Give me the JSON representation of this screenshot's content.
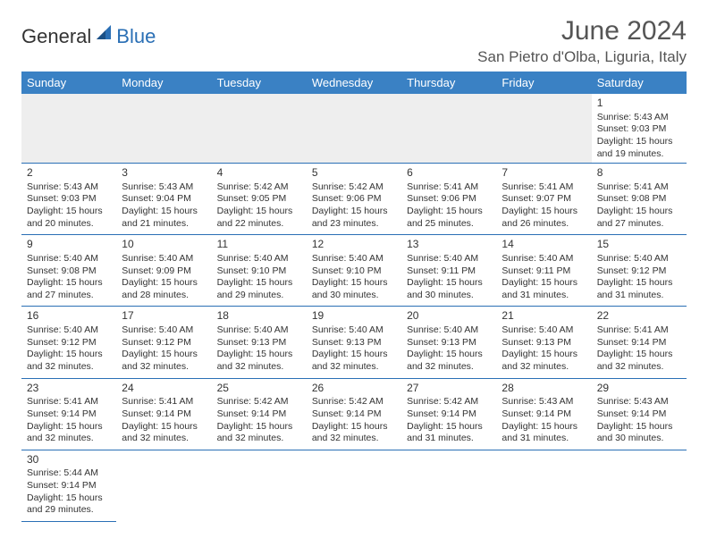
{
  "brand": {
    "part1": "General",
    "part2": "Blue"
  },
  "title": "June 2024",
  "location": "San Pietro d'Olba, Liguria, Italy",
  "colors": {
    "header_bg": "#3a81c4",
    "border": "#2a6fb5",
    "text": "#333333",
    "title_text": "#555555",
    "shade": "#eeeeee"
  },
  "daysOfWeek": [
    "Sunday",
    "Monday",
    "Tuesday",
    "Wednesday",
    "Thursday",
    "Friday",
    "Saturday"
  ],
  "weeks": [
    [
      null,
      null,
      null,
      null,
      null,
      null,
      {
        "n": "1",
        "sr": "Sunrise: 5:43 AM",
        "ss": "Sunset: 9:03 PM",
        "d1": "Daylight: 15 hours",
        "d2": "and 19 minutes."
      }
    ],
    [
      {
        "n": "2",
        "sr": "Sunrise: 5:43 AM",
        "ss": "Sunset: 9:03 PM",
        "d1": "Daylight: 15 hours",
        "d2": "and 20 minutes."
      },
      {
        "n": "3",
        "sr": "Sunrise: 5:43 AM",
        "ss": "Sunset: 9:04 PM",
        "d1": "Daylight: 15 hours",
        "d2": "and 21 minutes."
      },
      {
        "n": "4",
        "sr": "Sunrise: 5:42 AM",
        "ss": "Sunset: 9:05 PM",
        "d1": "Daylight: 15 hours",
        "d2": "and 22 minutes."
      },
      {
        "n": "5",
        "sr": "Sunrise: 5:42 AM",
        "ss": "Sunset: 9:06 PM",
        "d1": "Daylight: 15 hours",
        "d2": "and 23 minutes."
      },
      {
        "n": "6",
        "sr": "Sunrise: 5:41 AM",
        "ss": "Sunset: 9:06 PM",
        "d1": "Daylight: 15 hours",
        "d2": "and 25 minutes."
      },
      {
        "n": "7",
        "sr": "Sunrise: 5:41 AM",
        "ss": "Sunset: 9:07 PM",
        "d1": "Daylight: 15 hours",
        "d2": "and 26 minutes."
      },
      {
        "n": "8",
        "sr": "Sunrise: 5:41 AM",
        "ss": "Sunset: 9:08 PM",
        "d1": "Daylight: 15 hours",
        "d2": "and 27 minutes."
      }
    ],
    [
      {
        "n": "9",
        "sr": "Sunrise: 5:40 AM",
        "ss": "Sunset: 9:08 PM",
        "d1": "Daylight: 15 hours",
        "d2": "and 27 minutes."
      },
      {
        "n": "10",
        "sr": "Sunrise: 5:40 AM",
        "ss": "Sunset: 9:09 PM",
        "d1": "Daylight: 15 hours",
        "d2": "and 28 minutes."
      },
      {
        "n": "11",
        "sr": "Sunrise: 5:40 AM",
        "ss": "Sunset: 9:10 PM",
        "d1": "Daylight: 15 hours",
        "d2": "and 29 minutes."
      },
      {
        "n": "12",
        "sr": "Sunrise: 5:40 AM",
        "ss": "Sunset: 9:10 PM",
        "d1": "Daylight: 15 hours",
        "d2": "and 30 minutes."
      },
      {
        "n": "13",
        "sr": "Sunrise: 5:40 AM",
        "ss": "Sunset: 9:11 PM",
        "d1": "Daylight: 15 hours",
        "d2": "and 30 minutes."
      },
      {
        "n": "14",
        "sr": "Sunrise: 5:40 AM",
        "ss": "Sunset: 9:11 PM",
        "d1": "Daylight: 15 hours",
        "d2": "and 31 minutes."
      },
      {
        "n": "15",
        "sr": "Sunrise: 5:40 AM",
        "ss": "Sunset: 9:12 PM",
        "d1": "Daylight: 15 hours",
        "d2": "and 31 minutes."
      }
    ],
    [
      {
        "n": "16",
        "sr": "Sunrise: 5:40 AM",
        "ss": "Sunset: 9:12 PM",
        "d1": "Daylight: 15 hours",
        "d2": "and 32 minutes."
      },
      {
        "n": "17",
        "sr": "Sunrise: 5:40 AM",
        "ss": "Sunset: 9:12 PM",
        "d1": "Daylight: 15 hours",
        "d2": "and 32 minutes."
      },
      {
        "n": "18",
        "sr": "Sunrise: 5:40 AM",
        "ss": "Sunset: 9:13 PM",
        "d1": "Daylight: 15 hours",
        "d2": "and 32 minutes."
      },
      {
        "n": "19",
        "sr": "Sunrise: 5:40 AM",
        "ss": "Sunset: 9:13 PM",
        "d1": "Daylight: 15 hours",
        "d2": "and 32 minutes."
      },
      {
        "n": "20",
        "sr": "Sunrise: 5:40 AM",
        "ss": "Sunset: 9:13 PM",
        "d1": "Daylight: 15 hours",
        "d2": "and 32 minutes."
      },
      {
        "n": "21",
        "sr": "Sunrise: 5:40 AM",
        "ss": "Sunset: 9:13 PM",
        "d1": "Daylight: 15 hours",
        "d2": "and 32 minutes."
      },
      {
        "n": "22",
        "sr": "Sunrise: 5:41 AM",
        "ss": "Sunset: 9:14 PM",
        "d1": "Daylight: 15 hours",
        "d2": "and 32 minutes."
      }
    ],
    [
      {
        "n": "23",
        "sr": "Sunrise: 5:41 AM",
        "ss": "Sunset: 9:14 PM",
        "d1": "Daylight: 15 hours",
        "d2": "and 32 minutes."
      },
      {
        "n": "24",
        "sr": "Sunrise: 5:41 AM",
        "ss": "Sunset: 9:14 PM",
        "d1": "Daylight: 15 hours",
        "d2": "and 32 minutes."
      },
      {
        "n": "25",
        "sr": "Sunrise: 5:42 AM",
        "ss": "Sunset: 9:14 PM",
        "d1": "Daylight: 15 hours",
        "d2": "and 32 minutes."
      },
      {
        "n": "26",
        "sr": "Sunrise: 5:42 AM",
        "ss": "Sunset: 9:14 PM",
        "d1": "Daylight: 15 hours",
        "d2": "and 32 minutes."
      },
      {
        "n": "27",
        "sr": "Sunrise: 5:42 AM",
        "ss": "Sunset: 9:14 PM",
        "d1": "Daylight: 15 hours",
        "d2": "and 31 minutes."
      },
      {
        "n": "28",
        "sr": "Sunrise: 5:43 AM",
        "ss": "Sunset: 9:14 PM",
        "d1": "Daylight: 15 hours",
        "d2": "and 31 minutes."
      },
      {
        "n": "29",
        "sr": "Sunrise: 5:43 AM",
        "ss": "Sunset: 9:14 PM",
        "d1": "Daylight: 15 hours",
        "d2": "and 30 minutes."
      }
    ],
    [
      {
        "n": "30",
        "sr": "Sunrise: 5:44 AM",
        "ss": "Sunset: 9:14 PM",
        "d1": "Daylight: 15 hours",
        "d2": "and 29 minutes."
      },
      null,
      null,
      null,
      null,
      null,
      null
    ]
  ]
}
